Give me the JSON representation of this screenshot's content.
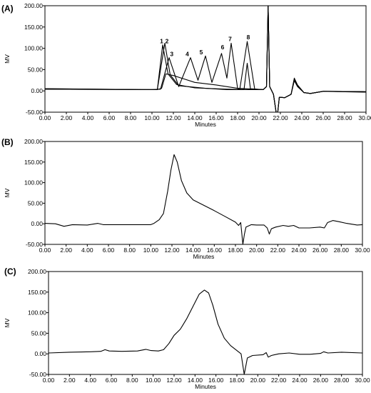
{
  "chart_data": [
    {
      "type": "line",
      "panel_label": "(A)",
      "xlabel": "Minutes",
      "ylabel": "MV",
      "xlim": [
        0,
        30
      ],
      "ylim": [
        -50,
        200
      ],
      "x_ticks": [
        "0.00",
        "2.00",
        "4.00",
        "6.00",
        "8.00",
        "10.00",
        "12.00",
        "14.00",
        "16.00",
        "18.00",
        "20.00",
        "22.00",
        "24.00",
        "26.00",
        "28.00",
        "30.00"
      ],
      "y_ticks": [
        "200.00",
        "150.00",
        "100.00",
        "50.00",
        "0.00",
        "-50.00"
      ],
      "peak_labels": [
        {
          "text": "1",
          "x": 10.9,
          "y": 112
        },
        {
          "text": "2",
          "x": 11.4,
          "y": 112
        },
        {
          "text": "3",
          "x": 11.85,
          "y": 82
        },
        {
          "text": "4",
          "x": 13.3,
          "y": 82
        },
        {
          "text": "5",
          "x": 14.6,
          "y": 86
        },
        {
          "text": "6",
          "x": 16.6,
          "y": 98
        },
        {
          "text": "7",
          "x": 17.3,
          "y": 117
        },
        {
          "text": "8",
          "x": 19.0,
          "y": 121
        }
      ],
      "series": [
        {
          "values": [
            [
              0,
              5
            ],
            [
              5,
              4
            ],
            [
              9,
              3
            ],
            [
              10.5,
              3
            ],
            [
              11.0,
              108
            ],
            [
              11.5,
              40
            ],
            [
              12.3,
              15
            ],
            [
              14,
              7
            ],
            [
              17,
              4
            ],
            [
              19,
              3
            ],
            [
              20.4,
              3
            ],
            [
              20.7,
              10
            ],
            [
              20.85,
              250
            ],
            [
              21.0,
              10
            ],
            [
              21.35,
              -8
            ],
            [
              21.6,
              -50
            ],
            [
              21.75,
              -50
            ],
            [
              21.9,
              -15
            ],
            [
              22.4,
              -16
            ],
            [
              23.0,
              -8
            ],
            [
              23.3,
              28
            ],
            [
              23.6,
              12
            ],
            [
              24.2,
              -4
            ],
            [
              24.8,
              -6
            ],
            [
              26,
              -1
            ],
            [
              30,
              -2
            ]
          ]
        },
        {
          "values": [
            [
              0,
              5
            ],
            [
              9,
              3
            ],
            [
              10.5,
              3
            ],
            [
              11.2,
              112
            ],
            [
              11.7,
              38
            ],
            [
              12.5,
              12
            ],
            [
              15,
              6
            ],
            [
              17,
              3
            ],
            [
              18.6,
              3
            ],
            [
              18.9,
              65
            ],
            [
              19.2,
              5
            ],
            [
              20.4,
              3
            ],
            [
              20.7,
              10
            ],
            [
              20.85,
              248
            ],
            [
              21.0,
              10
            ],
            [
              21.35,
              -8
            ],
            [
              21.6,
              -50
            ],
            [
              21.75,
              -50
            ],
            [
              21.9,
              -15
            ],
            [
              22.4,
              -16
            ],
            [
              23.0,
              -8
            ],
            [
              23.3,
              30
            ],
            [
              23.6,
              14
            ],
            [
              24.2,
              -4
            ],
            [
              24.8,
              -6
            ],
            [
              26,
              -1
            ],
            [
              30,
              -2
            ]
          ]
        },
        {
          "values": [
            [
              0,
              4
            ],
            [
              10,
              3
            ],
            [
              10.8,
              4
            ],
            [
              11.6,
              78
            ],
            [
              12.5,
              10
            ],
            [
              13.6,
              78
            ],
            [
              14.3,
              25
            ],
            [
              15.0,
              82
            ],
            [
              15.6,
              20
            ],
            [
              16.5,
              88
            ],
            [
              17.0,
              30
            ],
            [
              17.4,
              112
            ],
            [
              18.0,
              6
            ],
            [
              18.2,
              3
            ],
            [
              18.9,
              116
            ],
            [
              19.6,
              4
            ],
            [
              20.4,
              3
            ],
            [
              20.7,
              10
            ],
            [
              20.85,
              250
            ],
            [
              21.0,
              10
            ],
            [
              21.35,
              -8
            ],
            [
              21.6,
              -50
            ],
            [
              21.75,
              -50
            ],
            [
              21.9,
              -15
            ],
            [
              22.4,
              -16
            ],
            [
              23.0,
              -8
            ],
            [
              23.3,
              26
            ],
            [
              23.6,
              12
            ],
            [
              24.2,
              -4
            ],
            [
              24.8,
              -6
            ],
            [
              26,
              -1
            ],
            [
              30,
              -3
            ]
          ]
        },
        {
          "values": [
            [
              0,
              4
            ],
            [
              9,
              3
            ],
            [
              10.5,
              3
            ],
            [
              10.9,
              6
            ],
            [
              11.3,
              40
            ],
            [
              12.0,
              36
            ],
            [
              14,
              20
            ],
            [
              16,
              14
            ],
            [
              18,
              6
            ],
            [
              20.4,
              3
            ],
            [
              20.7,
              10
            ],
            [
              20.85,
              230
            ],
            [
              21.0,
              10
            ],
            [
              21.35,
              -8
            ],
            [
              21.6,
              -50
            ],
            [
              21.75,
              -50
            ],
            [
              21.9,
              -15
            ],
            [
              22.4,
              -16
            ],
            [
              23.0,
              -8
            ],
            [
              23.3,
              24
            ],
            [
              23.6,
              10
            ],
            [
              24.2,
              -4
            ],
            [
              24.8,
              -6
            ],
            [
              26,
              -1
            ],
            [
              30,
              -2
            ]
          ]
        }
      ]
    },
    {
      "type": "line",
      "panel_label": "(B)",
      "xlabel": "Minutes",
      "ylabel": "MV",
      "xlim": [
        0,
        30
      ],
      "ylim": [
        -50,
        200
      ],
      "x_ticks": [
        "0.00",
        "2.00",
        "4.00",
        "6.00",
        "8.00",
        "10.00",
        "12.00",
        "14.00",
        "16.00",
        "18.00",
        "20.00",
        "22.00",
        "24.00",
        "26.00",
        "28.00",
        "30.00"
      ],
      "y_ticks": [
        "200.00",
        "150.00",
        "100.00",
        "50.00",
        "0.00",
        "-50.00"
      ],
      "series": [
        {
          "values": [
            [
              0,
              1
            ],
            [
              1.0,
              0
            ],
            [
              1.8,
              -6
            ],
            [
              2.6,
              -2
            ],
            [
              4,
              -3
            ],
            [
              5,
              1
            ],
            [
              5.5,
              -2
            ],
            [
              8,
              -2
            ],
            [
              10,
              -2
            ],
            [
              10.3,
              1
            ],
            [
              10.8,
              10
            ],
            [
              11.2,
              25
            ],
            [
              11.6,
              80
            ],
            [
              11.9,
              130
            ],
            [
              12.2,
              168
            ],
            [
              12.5,
              150
            ],
            [
              12.9,
              105
            ],
            [
              13.4,
              75
            ],
            [
              14,
              58
            ],
            [
              15,
              45
            ],
            [
              16,
              32
            ],
            [
              17,
              18
            ],
            [
              18,
              4
            ],
            [
              18.3,
              -4
            ],
            [
              18.5,
              3
            ],
            [
              18.7,
              -60
            ],
            [
              18.85,
              -25
            ],
            [
              19.0,
              -8
            ],
            [
              19.5,
              -2
            ],
            [
              20,
              -3
            ],
            [
              20.7,
              -3
            ],
            [
              21.0,
              -10
            ],
            [
              21.2,
              -25
            ],
            [
              21.4,
              -12
            ],
            [
              21.8,
              -8
            ],
            [
              22.5,
              -4
            ],
            [
              23,
              -6
            ],
            [
              23.5,
              -4
            ],
            [
              24,
              -10
            ],
            [
              25,
              -10
            ],
            [
              26,
              -8
            ],
            [
              26.4,
              -10
            ],
            [
              26.7,
              3
            ],
            [
              27.2,
              8
            ],
            [
              27.8,
              5
            ],
            [
              28.5,
              1
            ],
            [
              29.5,
              -3
            ],
            [
              30,
              -2
            ]
          ]
        }
      ]
    },
    {
      "type": "line",
      "panel_label": "(C)",
      "xlabel": "Minutes",
      "ylabel": "MV",
      "xlim": [
        0,
        30
      ],
      "ylim": [
        -50,
        200
      ],
      "x_ticks": [
        "0.00",
        "2.00",
        "4.00",
        "6.00",
        "8.00",
        "10.00",
        "12.00",
        "14.00",
        "16.00",
        "18.00",
        "20.00",
        "22.00",
        "24.00",
        "26.00",
        "28.00",
        "30.00"
      ],
      "y_ticks": [
        "200.00",
        "150.00",
        "100.00",
        "50.00",
        "0.00",
        "-50.00"
      ],
      "series": [
        {
          "values": [
            [
              0,
              2
            ],
            [
              2,
              4
            ],
            [
              4,
              5
            ],
            [
              5,
              6
            ],
            [
              5.4,
              10
            ],
            [
              5.8,
              7
            ],
            [
              7,
              6
            ],
            [
              8.5,
              7
            ],
            [
              9.3,
              11
            ],
            [
              9.8,
              8
            ],
            [
              10.5,
              7
            ],
            [
              11.0,
              10
            ],
            [
              11.5,
              25
            ],
            [
              12.0,
              45
            ],
            [
              12.6,
              60
            ],
            [
              13.2,
              85
            ],
            [
              13.8,
              115
            ],
            [
              14.4,
              145
            ],
            [
              14.9,
              155
            ],
            [
              15.3,
              148
            ],
            [
              15.7,
              118
            ],
            [
              16.2,
              72
            ],
            [
              16.8,
              38
            ],
            [
              17.4,
              20
            ],
            [
              18.0,
              8
            ],
            [
              18.4,
              0
            ],
            [
              18.7,
              -55
            ],
            [
              18.85,
              -30
            ],
            [
              19.0,
              -10
            ],
            [
              19.5,
              -4
            ],
            [
              20.5,
              -2
            ],
            [
              20.8,
              3
            ],
            [
              21.0,
              -8
            ],
            [
              21.3,
              -4
            ],
            [
              22,
              0
            ],
            [
              23,
              2
            ],
            [
              24,
              -1
            ],
            [
              25,
              -1
            ],
            [
              26,
              1
            ],
            [
              26.3,
              5
            ],
            [
              26.7,
              2
            ],
            [
              28,
              4
            ],
            [
              30,
              2
            ]
          ]
        }
      ]
    }
  ]
}
